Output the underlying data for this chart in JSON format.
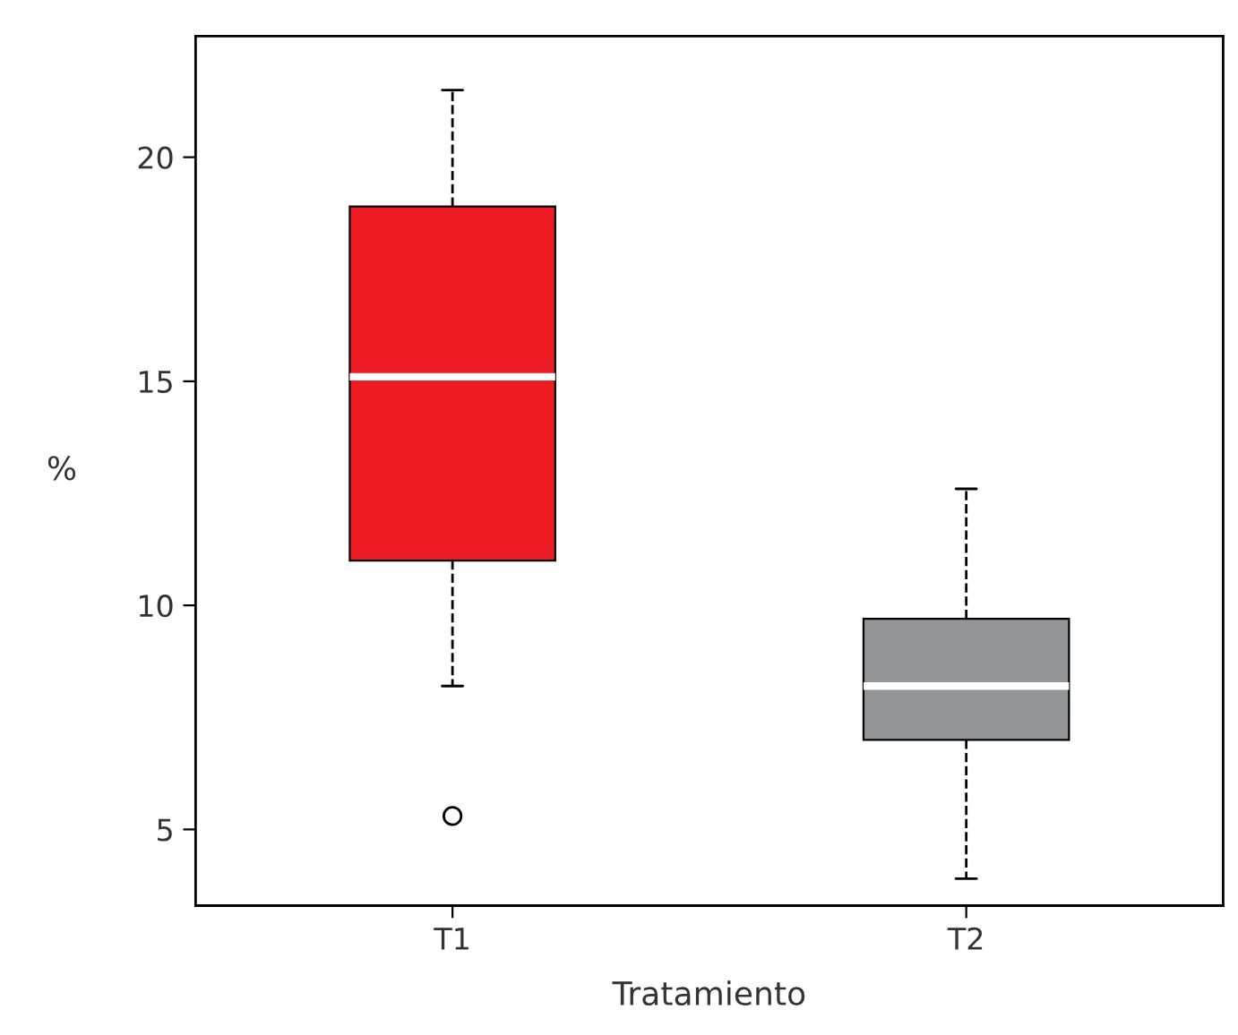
{
  "chart_data": {
    "type": "box",
    "xlabel": "Tratamiento",
    "ylabel": "%",
    "categories": [
      "T1",
      "T2"
    ],
    "colors": [
      "#ed1c24",
      "#939598"
    ],
    "boxes": [
      {
        "low": 8.2,
        "q1": 11.0,
        "median": 15.1,
        "q3": 18.9,
        "high": 21.5,
        "outliers": [
          5.3
        ]
      },
      {
        "low": 3.9,
        "q1": 7.0,
        "median": 8.2,
        "q3": 9.7,
        "high": 12.6
      }
    ],
    "ylim": [
      3.3,
      22.7
    ],
    "yticks": [
      5,
      10,
      15,
      20
    ],
    "grid": false
  }
}
